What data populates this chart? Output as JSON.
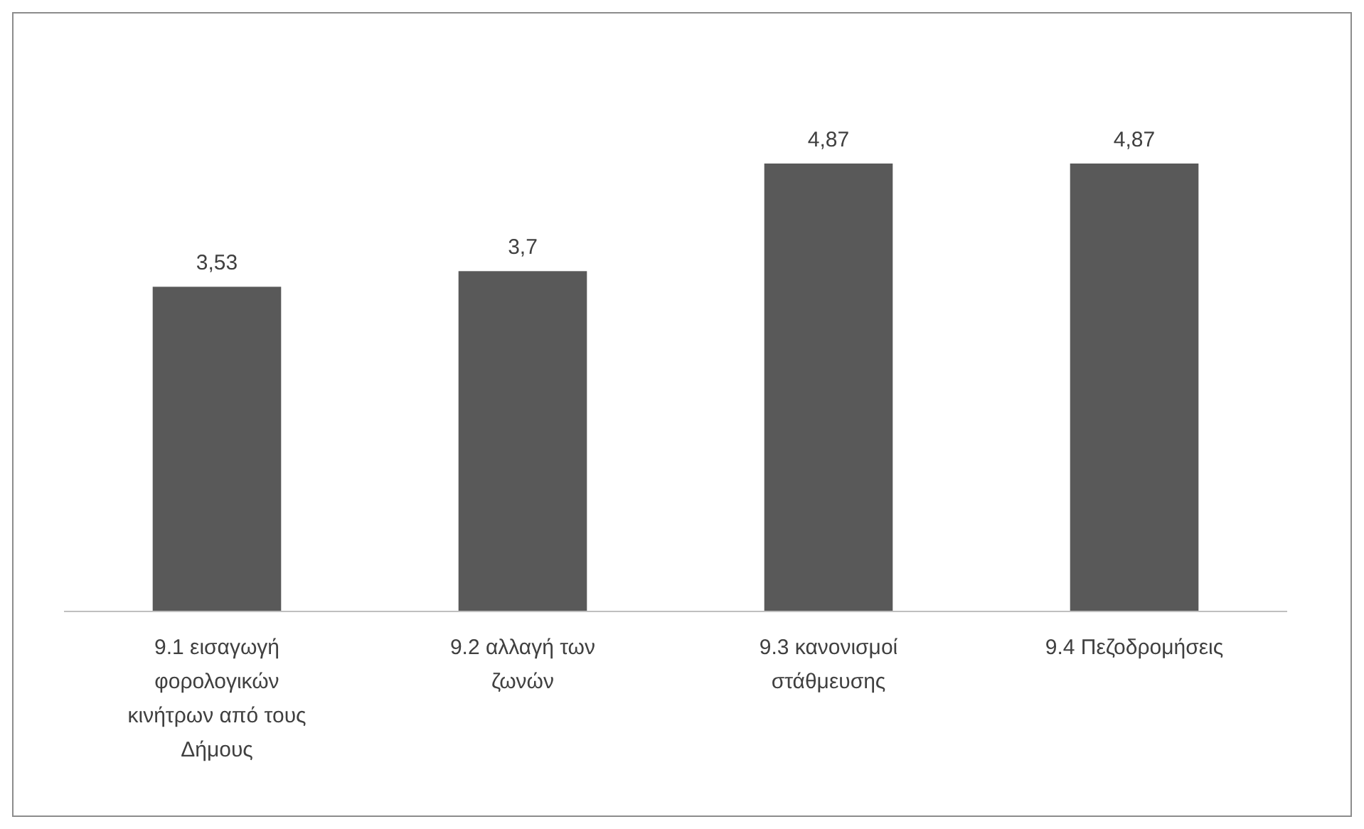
{
  "chart_data": {
    "type": "bar",
    "categories": [
      "9.1 εισαγωγή φορολογικών κινήτρων από τους Δήμους",
      "9.2 αλλαγή των ζωνών",
      "9.3 κανονισμοί στάθμευσης",
      "9.4 Πεζοδρομήσεις"
    ],
    "values": [
      3.53,
      3.7,
      4.87,
      4.87
    ],
    "value_labels": [
      "3,53",
      "3,7",
      "4,87",
      "4,87"
    ],
    "color": "#595959"
  }
}
